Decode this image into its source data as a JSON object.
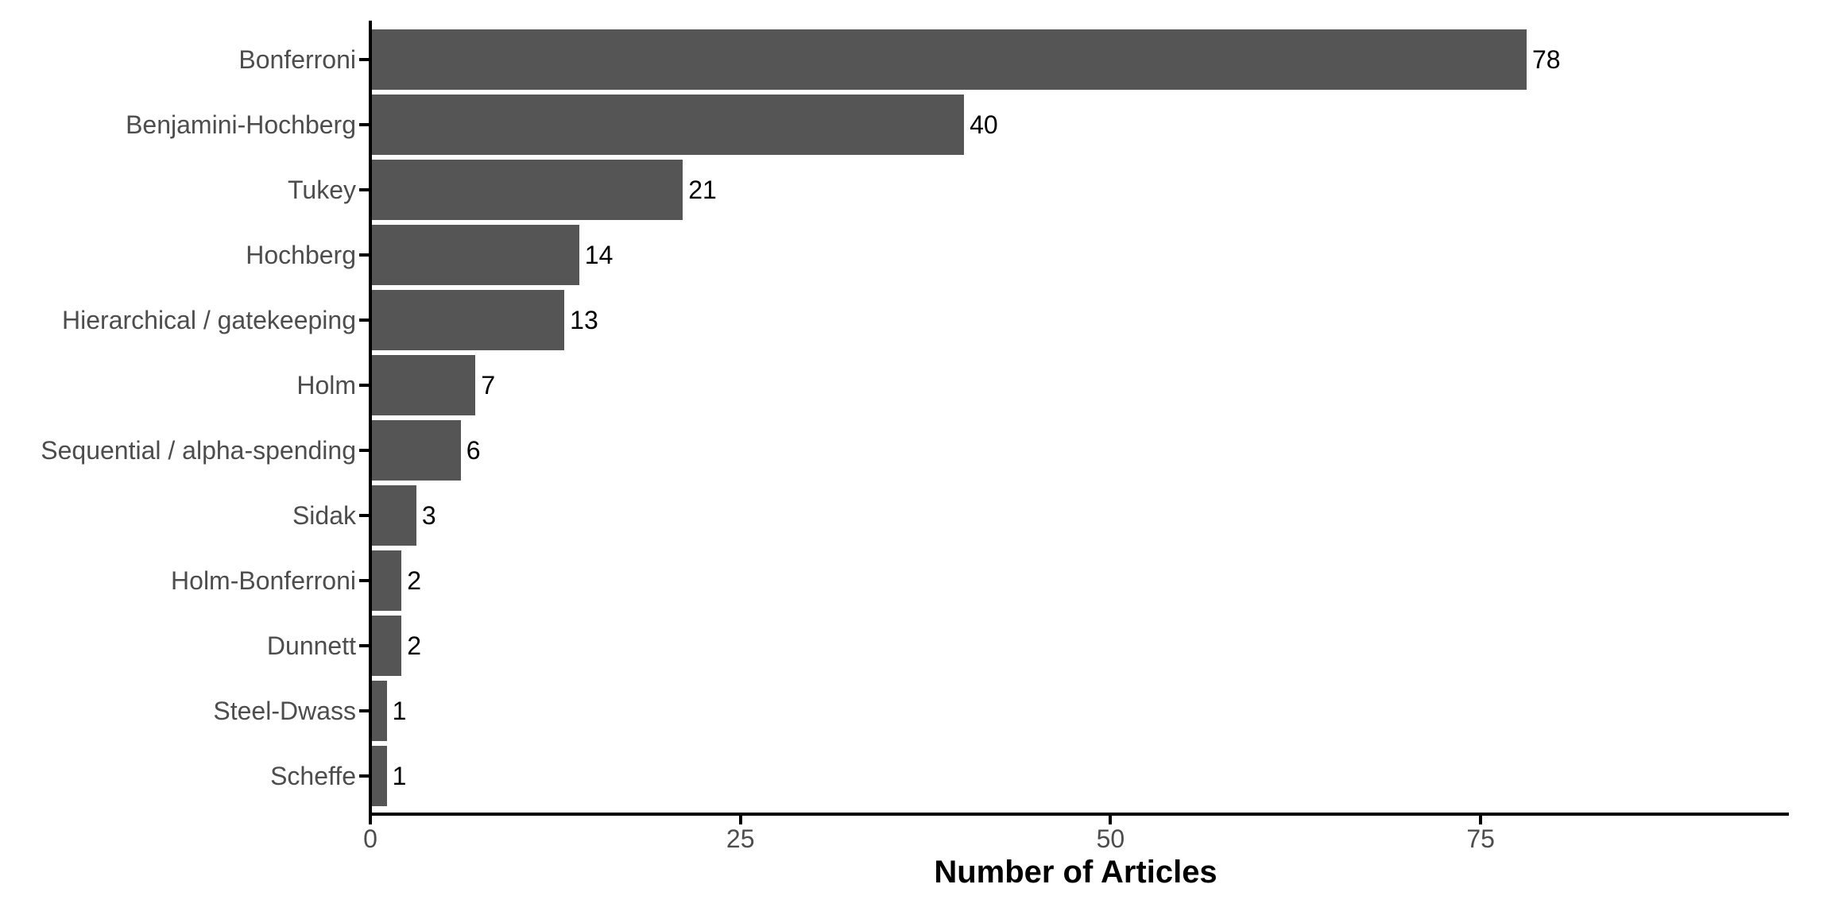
{
  "chart_data": {
    "type": "bar",
    "orientation": "horizontal",
    "title": "",
    "xlabel": "Number of Articles",
    "ylabel": "",
    "categories": [
      "Bonferroni",
      "Benjamini-Hochberg",
      "Tukey",
      "Hochberg",
      "Hierarchical / gatekeeping",
      "Holm",
      "Sequential / alpha-spending",
      "Sidak",
      "Holm-Bonferroni",
      "Dunnett",
      "Steel-Dwass",
      "Scheffe"
    ],
    "values": [
      78,
      40,
      21,
      14,
      13,
      7,
      6,
      3,
      2,
      2,
      1,
      1
    ],
    "value_labels": [
      "78",
      "40",
      "21",
      "14",
      "13",
      "7",
      "6",
      "3",
      "2",
      "2",
      "1",
      "1"
    ],
    "x_ticks": [
      0,
      25,
      50,
      75
    ],
    "xlim": [
      0,
      95.5
    ],
    "grid": false,
    "legend": false,
    "colors": {
      "bar": "#555555",
      "axis_line": "#000000",
      "tick_label": "#4D4D4D",
      "category_label": "#4D4D4D",
      "value_label": "#000000",
      "axis_title": "#000000",
      "background": "#FFFFFF"
    }
  }
}
